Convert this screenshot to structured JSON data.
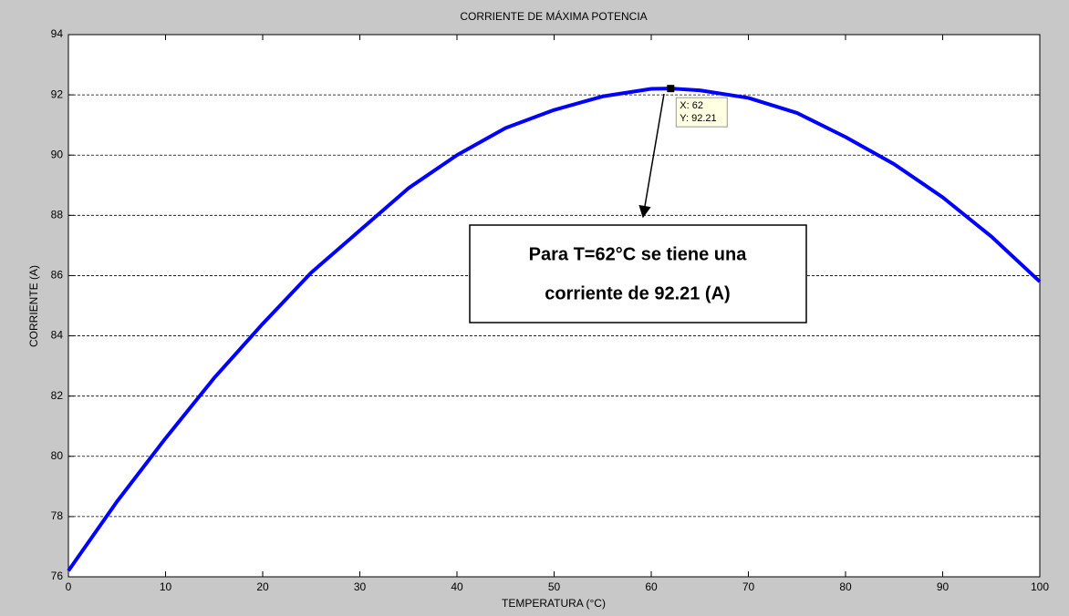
{
  "chart_data": {
    "type": "line",
    "title": "CORRIENTE DE MÁXIMA POTENCIA",
    "x_label": "TEMPERATURA (°C)",
    "y_label": "CORRIENTE (A)",
    "x": [
      0,
      5,
      10,
      15,
      20,
      25,
      30,
      35,
      40,
      45,
      50,
      55,
      60,
      62,
      65,
      70,
      75,
      80,
      85,
      90,
      95,
      100
    ],
    "series": [
      {
        "name": "CORRIENTE",
        "color": "#0000ff",
        "values": [
          76.2,
          78.5,
          80.6,
          82.6,
          84.4,
          86.1,
          87.5,
          88.9,
          90.0,
          90.9,
          91.5,
          91.95,
          92.2,
          92.21,
          92.15,
          91.9,
          91.4,
          90.6,
          89.7,
          88.6,
          87.3,
          85.8
        ]
      }
    ],
    "xlim": [
      0,
      100
    ],
    "xticks": [
      0,
      10,
      20,
      30,
      40,
      50,
      60,
      70,
      80,
      90,
      100
    ],
    "ylim": [
      76,
      94
    ],
    "yticks": [
      76,
      78,
      80,
      82,
      84,
      86,
      88,
      90,
      92,
      94
    ],
    "grid": true,
    "datatip": {
      "x": 62,
      "y": 92.21,
      "lines": [
        "X: 62",
        "Y: 92.21"
      ]
    },
    "annotation": [
      "Para  T=62°C se tiene una",
      "corriente de  92.21 (A)"
    ]
  }
}
